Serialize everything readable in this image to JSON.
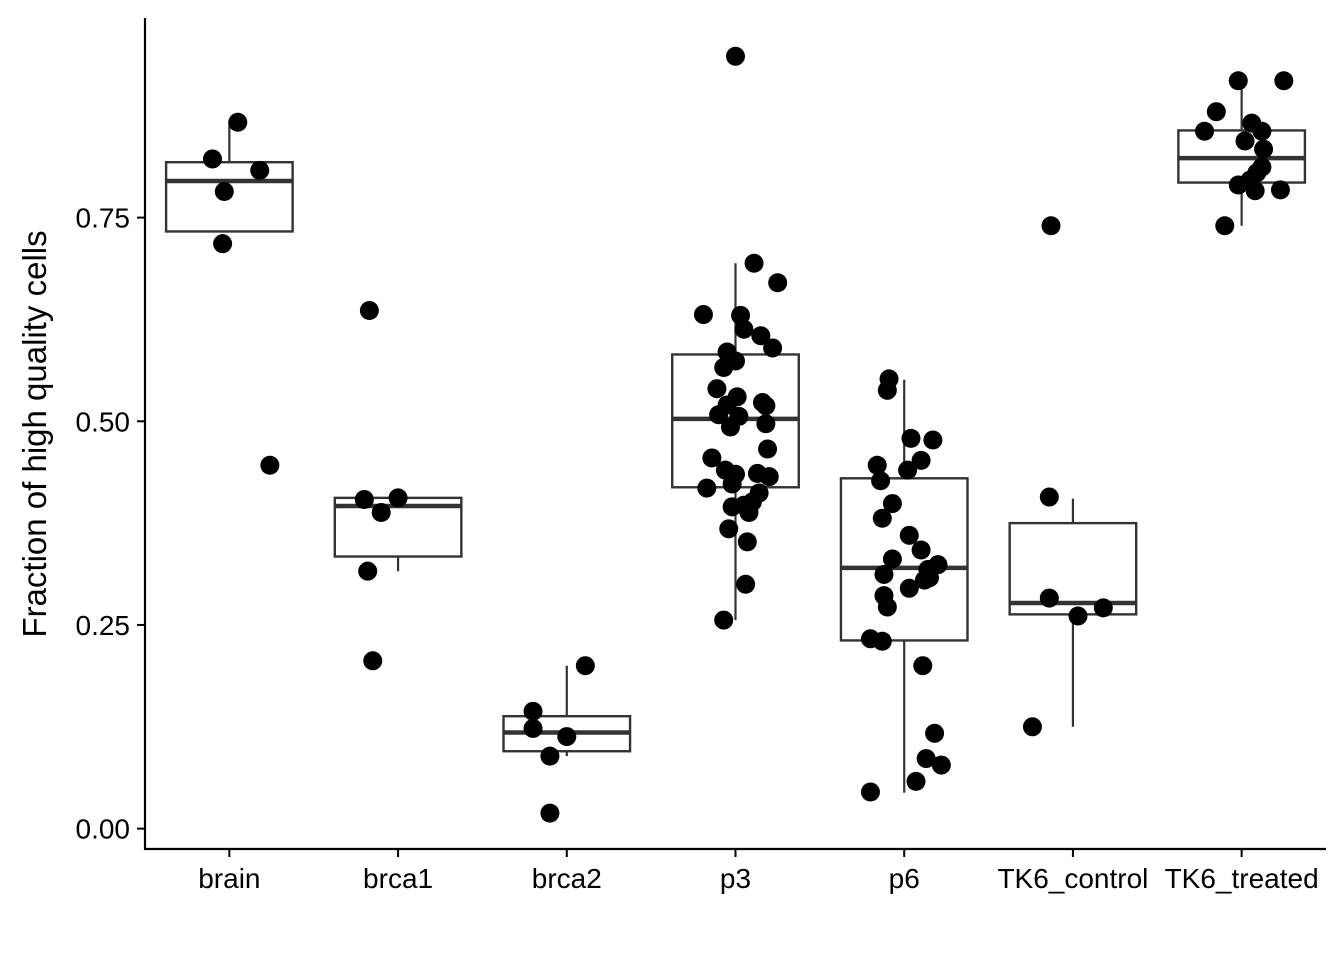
{
  "chart_data": {
    "type": "boxplot",
    "ylabel": "Fraction of high quality cells",
    "xlabel": "",
    "ylim": [
      -0.025,
      0.995
    ],
    "yticks": [
      0.0,
      0.25,
      0.5,
      0.75
    ],
    "ytick_labels": [
      "0.00",
      "0.25",
      "0.50",
      "0.75"
    ],
    "categories": [
      "brain",
      "brca1",
      "brca2",
      "p3",
      "p6",
      "TK6_control",
      "TK6_treated"
    ],
    "boxes": [
      {
        "q1": 0.733,
        "median": 0.795,
        "q3": 0.818,
        "whisker_low": 0.733,
        "whisker_high": 0.867
      },
      {
        "q1": 0.334,
        "median": 0.396,
        "q3": 0.406,
        "whisker_low": 0.316,
        "whisker_high": 0.406
      },
      {
        "q1": 0.095,
        "median": 0.118,
        "q3": 0.138,
        "whisker_low": 0.089,
        "whisker_high": 0.2
      },
      {
        "q1": 0.419,
        "median": 0.503,
        "q3": 0.582,
        "whisker_low": 0.256,
        "whisker_high": 0.694
      },
      {
        "q1": 0.231,
        "median": 0.32,
        "q3": 0.43,
        "whisker_low": 0.044,
        "whisker_high": 0.551
      },
      {
        "q1": 0.263,
        "median": 0.277,
        "q3": 0.375,
        "whisker_low": 0.125,
        "whisker_high": 0.405
      },
      {
        "q1": 0.793,
        "median": 0.823,
        "q3": 0.857,
        "whisker_low": 0.74,
        "whisker_high": 0.918
      }
    ],
    "points": [
      [
        [
          -0.1,
          0.822
        ],
        [
          0.05,
          0.867
        ],
        [
          0.18,
          0.808
        ],
        [
          -0.03,
          0.782
        ],
        [
          -0.04,
          0.718
        ],
        [
          0.24,
          0.446
        ]
      ],
      [
        [
          -0.17,
          0.636
        ],
        [
          -0.2,
          0.404
        ],
        [
          0.0,
          0.406
        ],
        [
          -0.1,
          0.388
        ],
        [
          -0.18,
          0.316
        ],
        [
          -0.15,
          0.206
        ]
      ],
      [
        [
          -0.2,
          0.144
        ],
        [
          -0.2,
          0.123
        ],
        [
          0.0,
          0.113
        ],
        [
          -0.1,
          0.089
        ],
        [
          0.11,
          0.2
        ],
        [
          -0.1,
          0.019
        ]
      ],
      [
        [
          0.0,
          0.948
        ],
        [
          0.11,
          0.694
        ],
        [
          0.25,
          0.67
        ],
        [
          -0.19,
          0.631
        ],
        [
          0.03,
          0.63
        ],
        [
          0.05,
          0.613
        ],
        [
          0.15,
          0.605
        ],
        [
          0.22,
          0.59
        ],
        [
          -0.05,
          0.585
        ],
        [
          0.0,
          0.574
        ],
        [
          -0.07,
          0.566
        ],
        [
          -0.11,
          0.54
        ],
        [
          0.01,
          0.53
        ],
        [
          -0.05,
          0.52
        ],
        [
          0.16,
          0.523
        ],
        [
          0.18,
          0.519
        ],
        [
          0.02,
          0.506
        ],
        [
          -0.1,
          0.508
        ],
        [
          0.18,
          0.497
        ],
        [
          -0.03,
          0.493
        ],
        [
          -0.14,
          0.455
        ],
        [
          0.19,
          0.466
        ],
        [
          -0.06,
          0.44
        ],
        [
          0.0,
          0.435
        ],
        [
          0.13,
          0.436
        ],
        [
          0.2,
          0.432
        ],
        [
          -0.02,
          0.423
        ],
        [
          -0.17,
          0.418
        ],
        [
          0.14,
          0.412
        ],
        [
          0.1,
          0.401
        ],
        [
          0.05,
          0.397
        ],
        [
          -0.02,
          0.395
        ],
        [
          0.08,
          0.388
        ],
        [
          -0.04,
          0.368
        ],
        [
          0.07,
          0.352
        ],
        [
          0.06,
          0.3
        ],
        [
          -0.07,
          0.256
        ]
      ],
      [
        [
          -0.09,
          0.552
        ],
        [
          -0.1,
          0.538
        ],
        [
          0.04,
          0.479
        ],
        [
          0.17,
          0.477
        ],
        [
          0.1,
          0.452
        ],
        [
          -0.16,
          0.446
        ],
        [
          0.02,
          0.44
        ],
        [
          -0.14,
          0.427
        ],
        [
          -0.07,
          0.399
        ],
        [
          -0.13,
          0.381
        ],
        [
          0.03,
          0.36
        ],
        [
          0.1,
          0.342
        ],
        [
          -0.07,
          0.331
        ],
        [
          0.2,
          0.324
        ],
        [
          0.14,
          0.318
        ],
        [
          -0.12,
          0.312
        ],
        [
          0.15,
          0.308
        ],
        [
          0.12,
          0.305
        ],
        [
          0.03,
          0.295
        ],
        [
          -0.12,
          0.286
        ],
        [
          -0.1,
          0.272
        ],
        [
          -0.2,
          0.233
        ],
        [
          -0.13,
          0.23
        ],
        [
          0.11,
          0.2
        ],
        [
          0.18,
          0.117
        ],
        [
          0.13,
          0.086
        ],
        [
          0.22,
          0.078
        ],
        [
          0.07,
          0.058
        ],
        [
          -0.2,
          0.045
        ]
      ],
      [
        [
          -0.13,
          0.74
        ],
        [
          -0.14,
          0.407
        ],
        [
          -0.14,
          0.283
        ],
        [
          0.18,
          0.271
        ],
        [
          0.03,
          0.261
        ],
        [
          -0.24,
          0.125
        ]
      ],
      [
        [
          -0.02,
          0.918
        ],
        [
          0.25,
          0.918
        ],
        [
          -0.15,
          0.88
        ],
        [
          0.06,
          0.866
        ],
        [
          0.12,
          0.856
        ],
        [
          -0.22,
          0.856
        ],
        [
          0.02,
          0.844
        ],
        [
          0.13,
          0.834
        ],
        [
          0.12,
          0.812
        ],
        [
          0.09,
          0.805
        ],
        [
          0.05,
          0.796
        ],
        [
          -0.02,
          0.79
        ],
        [
          0.23,
          0.784
        ],
        [
          0.08,
          0.783
        ],
        [
          -0.1,
          0.74
        ]
      ]
    ]
  }
}
